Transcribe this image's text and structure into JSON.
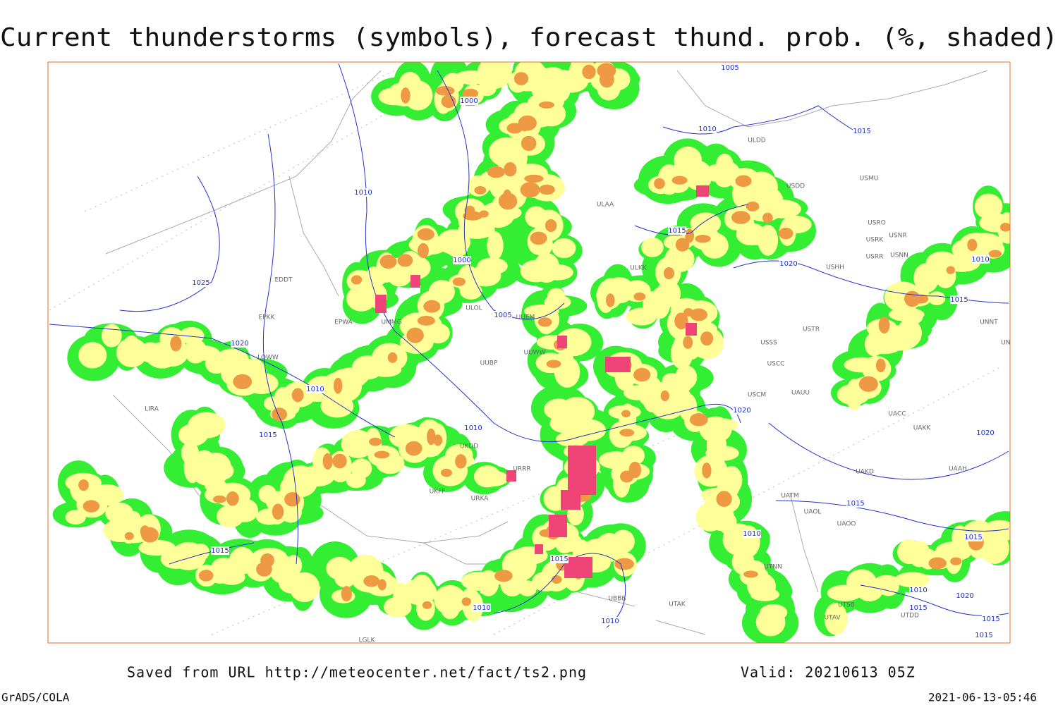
{
  "header": {
    "title": "Current thunderstorms (symbols), forecast thund. prob. (%, shaded)"
  },
  "map": {
    "isobar_labels": [
      "1005",
      "1000",
      "1010",
      "1015",
      "1010",
      "1015",
      "1025",
      "1000",
      "1020",
      "1010",
      "1005",
      "1015",
      "1020",
      "1010",
      "1015",
      "1020",
      "1010",
      "1020",
      "1015",
      "1010",
      "1015",
      "1015",
      "1015",
      "1010",
      "1010",
      "1010",
      "1020",
      "1015",
      "1015",
      "1015"
    ],
    "stations": [
      "ULDD",
      "USMU",
      "USDD",
      "ULAA",
      "USRO",
      "USRK",
      "USNR",
      "USRR",
      "USNN",
      "ULKK",
      "USHH",
      "EDDT",
      "ULOL",
      "UUEM",
      "EPKK",
      "EPWA",
      "UMMG",
      "USTR",
      "UNNT",
      "UNBB",
      "USSS",
      "UUWW",
      "UUBP",
      "USCC",
      "LOWW",
      "USCM",
      "UAUU",
      "LIRA",
      "UACC",
      "UAKK",
      "UKDD",
      "UKFF",
      "URKA",
      "URRR",
      "UAKD",
      "UAAH",
      "UATM",
      "UAOL",
      "UAOO",
      "UTNN",
      "UBBB",
      "UTAK",
      "UTSB",
      "UTAV",
      "LGLK",
      "UTDD"
    ]
  },
  "footer": {
    "saved": "Saved from URL http://meteocenter.net/fact/ts2.png",
    "valid": "Valid: 20210613 05Z",
    "software": "GrADS/COLA",
    "timestamp": "2021-06-13-05:46"
  }
}
